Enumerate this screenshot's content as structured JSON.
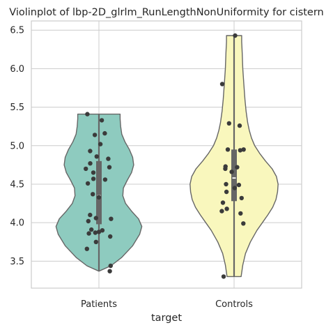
{
  "chart_data": {
    "type": "violin",
    "title": "Violinplot of lbp-2D_glrlm_RunLengthNonUniformity for cistern",
    "xlabel": "target",
    "ylabel": "",
    "categories": [
      "Patients",
      "Controls"
    ],
    "ylim": [
      3.15,
      6.62
    ],
    "yticks": [
      3.5,
      4.0,
      4.5,
      5.0,
      5.5,
      6.0,
      6.5
    ],
    "ytick_labels": [
      "3.5",
      "4.0",
      "4.5",
      "5.0",
      "5.5",
      "6.0",
      "6.5"
    ],
    "grid": true,
    "series": [
      {
        "category": "Patients",
        "color": "#8ecbbf",
        "range": [
          3.37,
          5.41
        ],
        "quartiles": [
          3.98,
          4.35,
          4.8
        ],
        "median": 4.35,
        "points": [
          3.37,
          3.44,
          3.66,
          3.75,
          3.82,
          3.86,
          3.87,
          3.88,
          3.9,
          3.91,
          4.02,
          4.05,
          4.06,
          4.1,
          4.33,
          4.37,
          4.51,
          4.56,
          4.57,
          4.65,
          4.7,
          4.72,
          4.77,
          4.83,
          4.86,
          4.93,
          5.02,
          5.14,
          5.16,
          5.33,
          5.41
        ],
        "density": [
          [
            3.37,
            0.0
          ],
          [
            3.44,
            0.22
          ],
          [
            3.55,
            0.42
          ],
          [
            3.7,
            0.62
          ],
          [
            3.85,
            0.75
          ],
          [
            3.95,
            0.79
          ],
          [
            4.05,
            0.73
          ],
          [
            4.15,
            0.6
          ],
          [
            4.25,
            0.49
          ],
          [
            4.35,
            0.44
          ],
          [
            4.45,
            0.45
          ],
          [
            4.55,
            0.52
          ],
          [
            4.65,
            0.6
          ],
          [
            4.75,
            0.64
          ],
          [
            4.85,
            0.62
          ],
          [
            4.95,
            0.56
          ],
          [
            5.05,
            0.48
          ],
          [
            5.15,
            0.42
          ],
          [
            5.25,
            0.4
          ],
          [
            5.35,
            0.39
          ],
          [
            5.41,
            0.39
          ]
        ]
      },
      {
        "category": "Controls",
        "color": "#f9f7bd",
        "range": [
          3.3,
          6.43
        ],
        "quartiles": [
          4.28,
          4.58,
          4.95
        ],
        "median": 4.58,
        "points": [
          3.3,
          3.99,
          4.12,
          4.15,
          4.18,
          4.26,
          4.32,
          4.4,
          4.45,
          4.49,
          4.5,
          4.66,
          4.7,
          4.72,
          4.73,
          4.94,
          4.95,
          4.95,
          5.26,
          5.29,
          5.8,
          6.43
        ],
        "density": [
          [
            3.3,
            0.13
          ],
          [
            3.45,
            0.16
          ],
          [
            3.6,
            0.21
          ],
          [
            3.75,
            0.3
          ],
          [
            3.9,
            0.42
          ],
          [
            4.0,
            0.52
          ],
          [
            4.1,
            0.62
          ],
          [
            4.2,
            0.71
          ],
          [
            4.3,
            0.77
          ],
          [
            4.4,
            0.8
          ],
          [
            4.5,
            0.81
          ],
          [
            4.6,
            0.78
          ],
          [
            4.7,
            0.7
          ],
          [
            4.8,
            0.58
          ],
          [
            4.9,
            0.47
          ],
          [
            5.0,
            0.38
          ],
          [
            5.1,
            0.32
          ],
          [
            5.2,
            0.28
          ],
          [
            5.3,
            0.25
          ],
          [
            5.45,
            0.22
          ],
          [
            5.6,
            0.2
          ],
          [
            5.8,
            0.18
          ],
          [
            6.0,
            0.16
          ],
          [
            6.2,
            0.15
          ],
          [
            6.35,
            0.14
          ],
          [
            6.43,
            0.14
          ]
        ]
      }
    ]
  }
}
